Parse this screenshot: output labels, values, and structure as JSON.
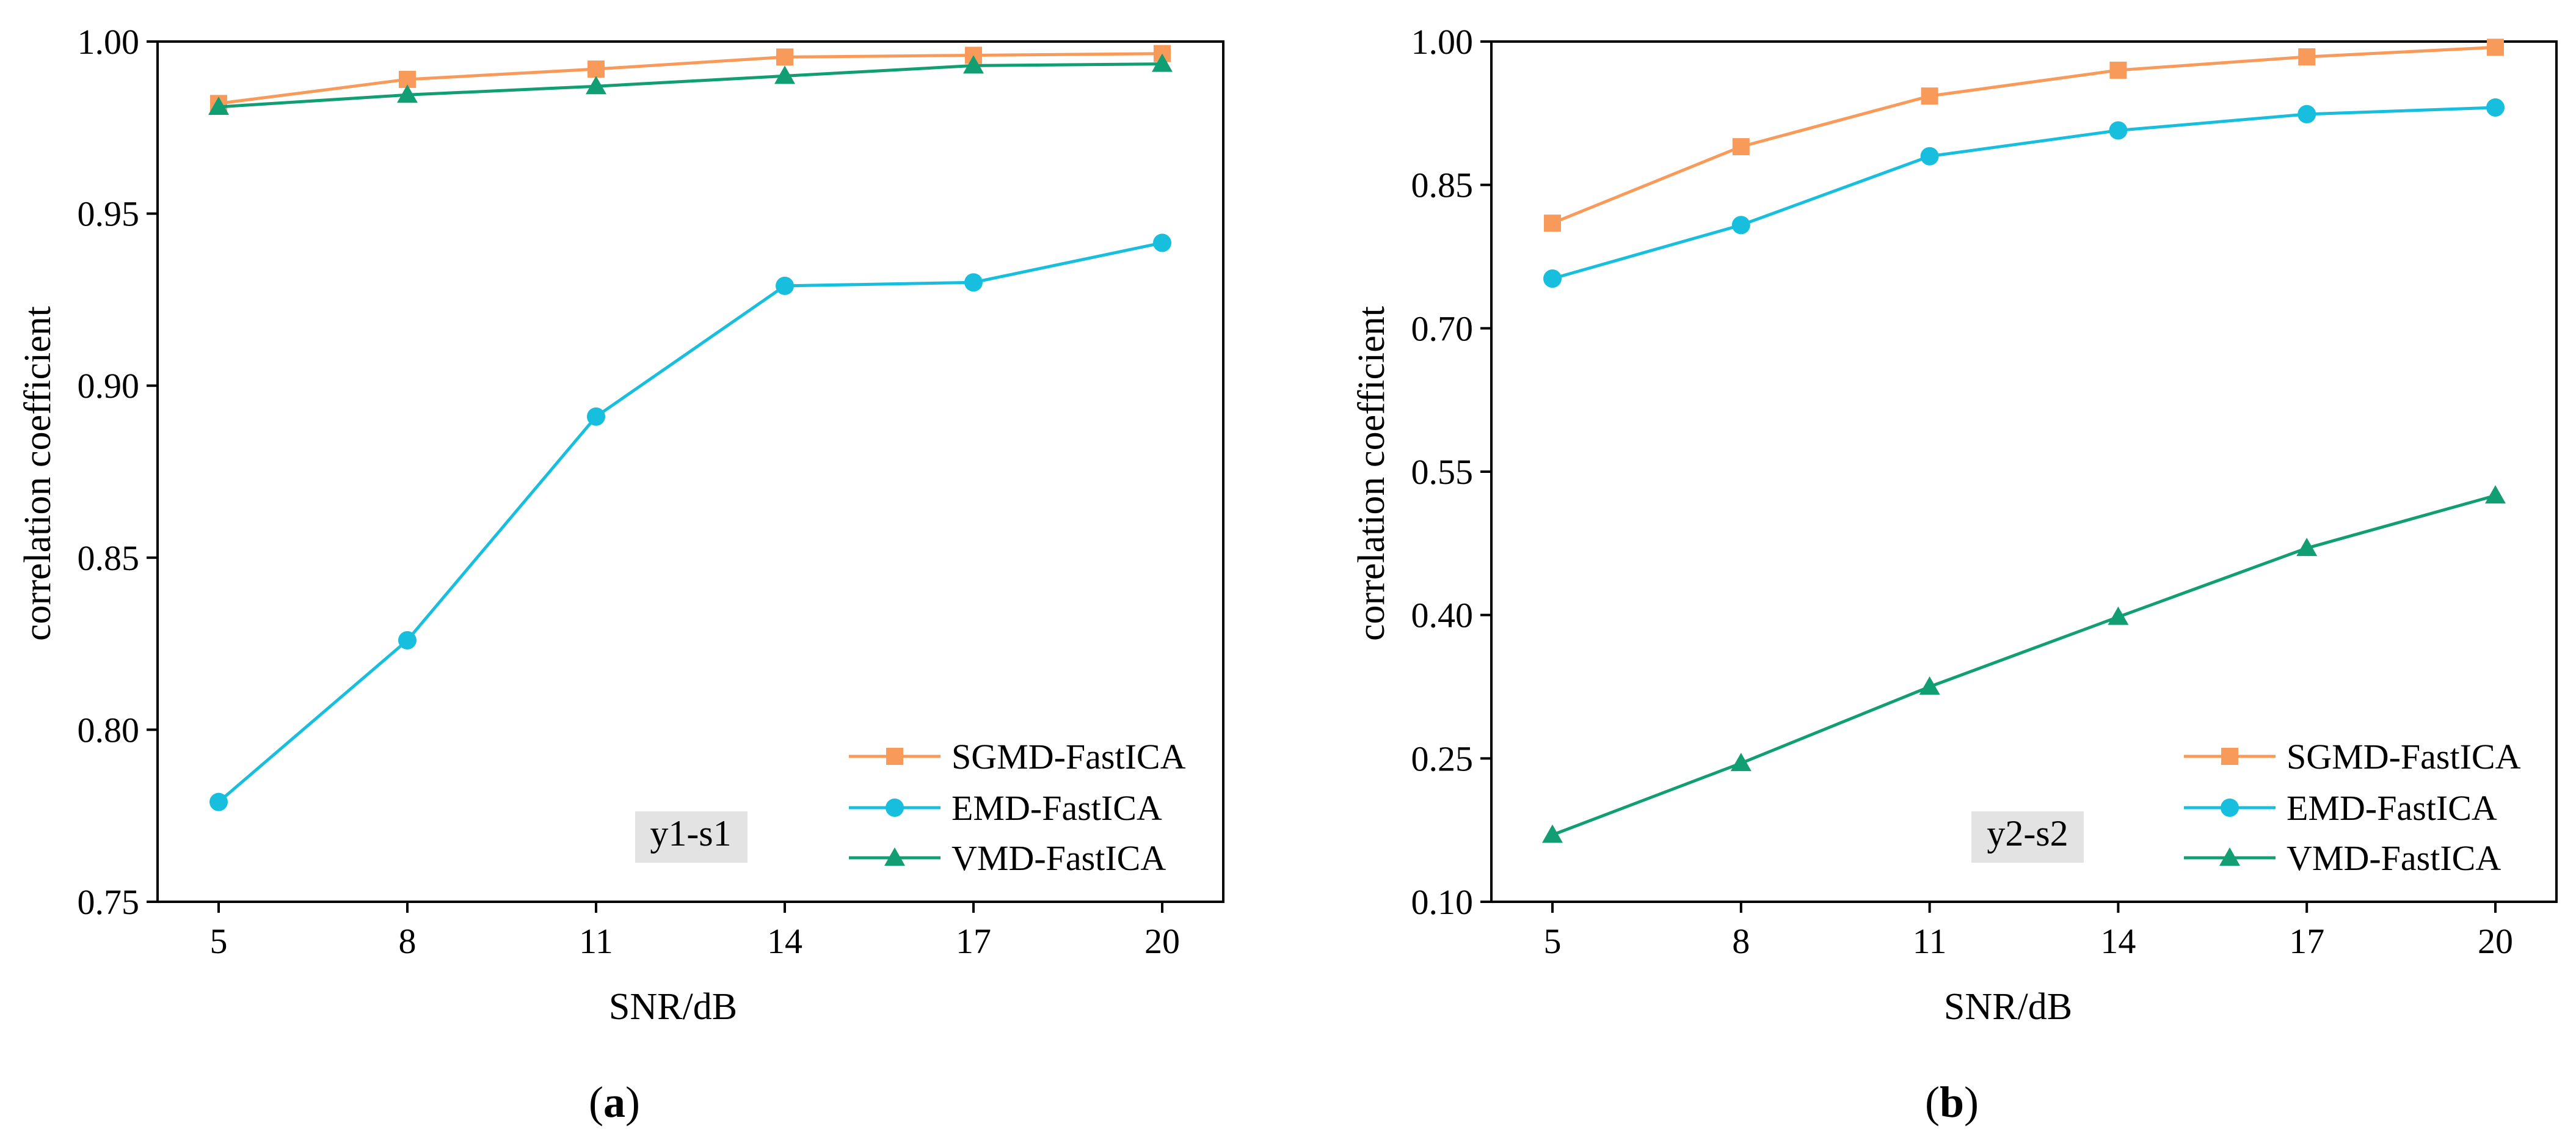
{
  "chart_data": [
    {
      "type": "line",
      "panel_label": "a",
      "annotation": "y1-s1",
      "xlabel": "SNR/dB",
      "ylabel": "correlation coefficient",
      "categories": [
        "5",
        "8",
        "11",
        "14",
        "17",
        "20"
      ],
      "x": [
        5,
        8,
        11,
        14,
        17,
        20
      ],
      "ylim": [
        0.75,
        1.0
      ],
      "yticks": [
        "0.75",
        "0.80",
        "0.85",
        "0.90",
        "0.95",
        "1.00"
      ],
      "legend_position": "bottom-right",
      "series": [
        {
          "name": "SGMD-FastICA",
          "color": "#F89B5A",
          "marker": "square",
          "values": [
            0.982,
            0.989,
            0.992,
            0.9955,
            0.996,
            0.9965
          ]
        },
        {
          "name": "EMD-FastICA",
          "color": "#17BEDD",
          "marker": "circle",
          "values": [
            0.779,
            0.826,
            0.891,
            0.929,
            0.93,
            0.9415
          ]
        },
        {
          "name": "VMD-FastICA",
          "color": "#119E73",
          "marker": "triangle",
          "values": [
            0.981,
            0.9845,
            0.987,
            0.99,
            0.993,
            0.9935
          ]
        }
      ]
    },
    {
      "type": "line",
      "panel_label": "b",
      "annotation": "y2-s2",
      "xlabel": "SNR/dB",
      "ylabel": "correlation coefficient",
      "categories": [
        "5",
        "8",
        "11",
        "14",
        "17",
        "20"
      ],
      "x": [
        5,
        8,
        11,
        14,
        17,
        20
      ],
      "ylim": [
        0.1,
        1.0
      ],
      "yticks": [
        "0.10",
        "0.25",
        "0.40",
        "0.55",
        "0.70",
        "0.85",
        "1.00"
      ],
      "legend_position": "bottom-right",
      "series": [
        {
          "name": "SGMD-FastICA",
          "color": "#F89B5A",
          "marker": "square",
          "values": [
            0.81,
            0.89,
            0.943,
            0.97,
            0.984,
            0.994
          ]
        },
        {
          "name": "EMD-FastICA",
          "color": "#17BEDD",
          "marker": "circle",
          "values": [
            0.752,
            0.808,
            0.88,
            0.907,
            0.924,
            0.931
          ]
        },
        {
          "name": "VMD-FastICA",
          "color": "#119E73",
          "marker": "triangle",
          "values": [
            0.17,
            0.245,
            0.325,
            0.398,
            0.47,
            0.525
          ]
        }
      ]
    }
  ]
}
